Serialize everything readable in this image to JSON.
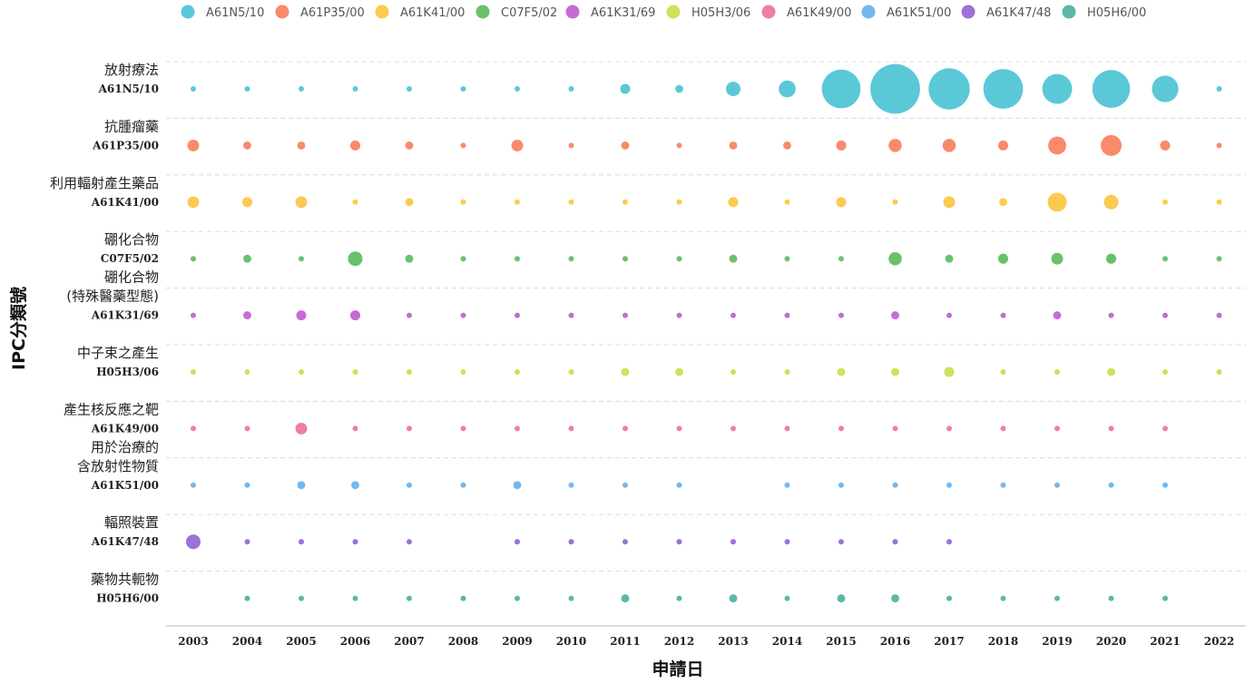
{
  "chart_data": {
    "type": "scatter",
    "subtype": "bubble-matrix",
    "xlabel": "申請日",
    "ylabel": "IPC分類號",
    "x": [
      "2003",
      "2004",
      "2005",
      "2006",
      "2007",
      "2008",
      "2009",
      "2010",
      "2011",
      "2012",
      "2013",
      "2014",
      "2015",
      "2016",
      "2017",
      "2018",
      "2019",
      "2020",
      "2021",
      "2022"
    ],
    "grid": "horizontal dashed",
    "legend_position": "top",
    "series": [
      {
        "name": "A61N5/10",
        "labels": [
          "放射療法"
        ],
        "code": "A61N5/10",
        "color": "#5bc8d8",
        "values": [
          1,
          1,
          1,
          1,
          1,
          1,
          1,
          1,
          3,
          2,
          6,
          8,
          40,
          65,
          45,
          42,
          24,
          38,
          19,
          1
        ]
      },
      {
        "name": "A61P35/00",
        "labels": [
          "抗腫瘤藥"
        ],
        "code": "A61P35/00",
        "color": "#f98a6b",
        "values": [
          4,
          2,
          2,
          3,
          2,
          1,
          4,
          1,
          2,
          1,
          2,
          2,
          3,
          5,
          5,
          3,
          9,
          12,
          3,
          1
        ]
      },
      {
        "name": "A61K41/00",
        "labels": [
          "利用輻射產生藥品"
        ],
        "code": "A61K41/00",
        "color": "#fcca52",
        "values": [
          4,
          3,
          4,
          1,
          2,
          1,
          1,
          1,
          1,
          1,
          3,
          1,
          3,
          1,
          4,
          2,
          10,
          6,
          1,
          1
        ]
      },
      {
        "name": "C07F5/02",
        "labels": [
          "硼化合物"
        ],
        "code": "C07F5/02",
        "color": "#6ac16a",
        "values": [
          1,
          2,
          1,
          6,
          2,
          1,
          1,
          1,
          1,
          1,
          2,
          1,
          1,
          5,
          2,
          3,
          4,
          3,
          1,
          1
        ]
      },
      {
        "name": "A61K31/69",
        "labels": [
          "硼化合物",
          "(特殊醫藥型態)"
        ],
        "code": "A61K31/69",
        "color": "#c76ad8",
        "values": [
          1,
          2,
          3,
          3,
          1,
          1,
          1,
          1,
          1,
          1,
          1,
          1,
          1,
          2,
          1,
          1,
          2,
          1,
          1,
          1
        ]
      },
      {
        "name": "H05H3/06",
        "labels": [
          "中子束之產生"
        ],
        "code": "H05H3/06",
        "color": "#d2e05a",
        "values": [
          1,
          1,
          1,
          1,
          1,
          1,
          1,
          1,
          2,
          2,
          1,
          1,
          2,
          2,
          3,
          1,
          1,
          2,
          1,
          1
        ]
      },
      {
        "name": "A61K49/00",
        "labels": [
          "產生核反應之靶"
        ],
        "code": "A61K49/00",
        "color": "#f07ea2",
        "values": [
          1,
          1,
          4,
          1,
          1,
          1,
          1,
          1,
          1,
          1,
          1,
          1,
          1,
          1,
          1,
          1,
          1,
          1,
          1,
          null
        ]
      },
      {
        "name": "A61K51/00",
        "labels": [
          "用於治療的",
          "含放射性物質"
        ],
        "code": "A61K51/00",
        "color": "#72b8f0",
        "values": [
          1,
          1,
          2,
          2,
          1,
          1,
          2,
          1,
          1,
          1,
          null,
          1,
          1,
          1,
          1,
          1,
          1,
          1,
          1,
          null
        ]
      },
      {
        "name": "A61K47/48",
        "labels": [
          "輻照裝置"
        ],
        "code": "A61K47/48",
        "color": "#9b72d6",
        "values": [
          6,
          1,
          1,
          1,
          1,
          null,
          1,
          1,
          1,
          1,
          1,
          1,
          1,
          1,
          1,
          null,
          null,
          null,
          null,
          null
        ]
      },
      {
        "name": "H05H6/00",
        "labels": [
          "藥物共軛物"
        ],
        "code": "H05H6/00",
        "color": "#5ab8a8",
        "values": [
          null,
          1,
          1,
          1,
          1,
          1,
          1,
          1,
          2,
          1,
          2,
          1,
          2,
          2,
          1,
          1,
          1,
          1,
          1,
          null
        ]
      }
    ]
  }
}
